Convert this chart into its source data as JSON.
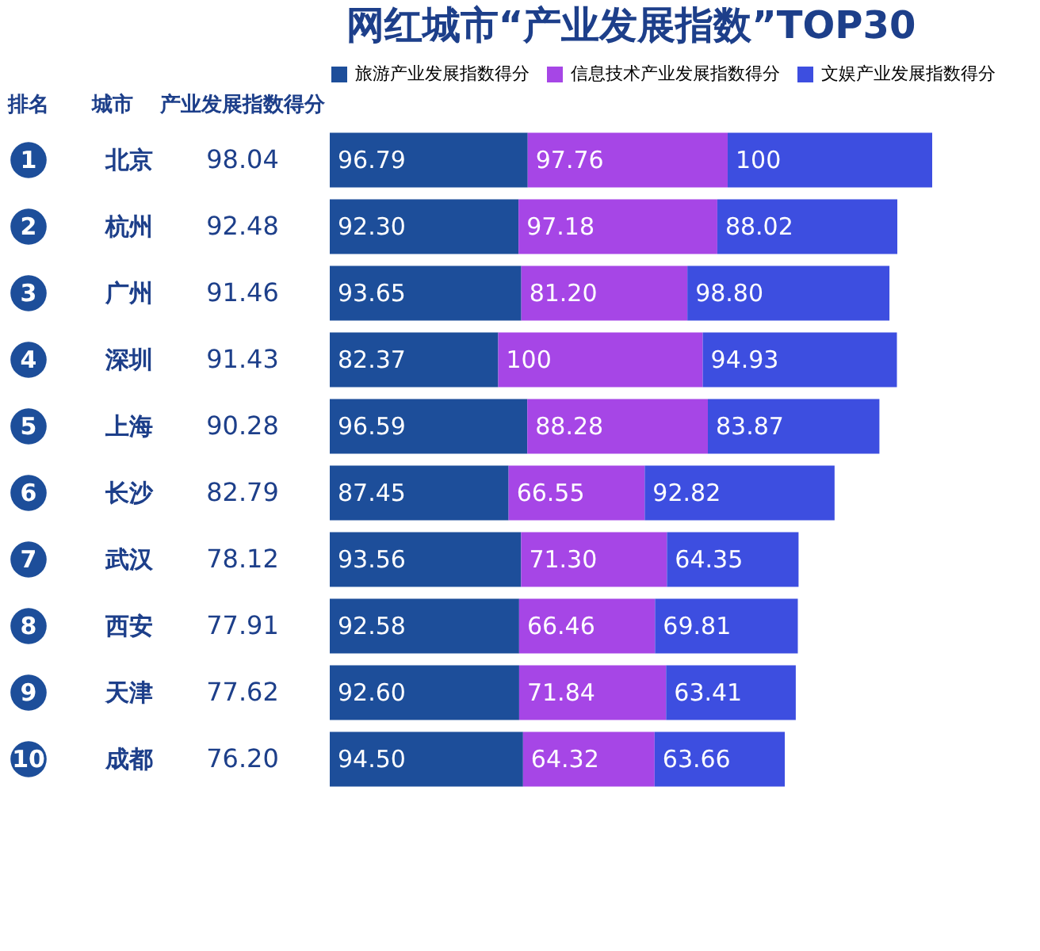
{
  "chart_data": {
    "type": "bar",
    "orientation": "horizontal",
    "stacked": true,
    "legend": "top",
    "title": "网红城市“产业发展指数”TOP30",
    "categories": [
      "北京",
      "杭州",
      "广州",
      "深圳",
      "上海",
      "长沙",
      "武汉",
      "西安",
      "天津",
      "成都"
    ],
    "series": [
      {
        "name": "旅游产业发展指数得分",
        "color": "#1d4e9a",
        "values": [
          96.79,
          92.3,
          93.65,
          82.37,
          96.59,
          87.45,
          93.56,
          92.58,
          92.6,
          94.5
        ],
        "value_labels": [
          "96.79",
          "92.30",
          "93.65",
          "82.37",
          "96.59",
          "87.45",
          "93.56",
          "92.58",
          "92.60",
          "94.50"
        ]
      },
      {
        "name": "信息技术产业发展指数得分",
        "color": "#a646e6",
        "values": [
          97.76,
          97.18,
          81.2,
          100,
          88.28,
          66.55,
          71.3,
          66.46,
          71.84,
          64.32
        ],
        "value_labels": [
          "97.76",
          "97.18",
          "81.20",
          "100",
          "88.28",
          "66.55",
          "71.30",
          "66.46",
          "71.84",
          "64.32"
        ]
      },
      {
        "name": "文娱产业发展指数得分",
        "color": "#3d4ee0",
        "values": [
          100,
          88.02,
          98.8,
          94.93,
          83.87,
          92.82,
          64.35,
          69.81,
          63.41,
          63.66
        ],
        "value_labels": [
          "100",
          "88.02",
          "98.80",
          "94.93",
          "83.87",
          "92.82",
          "64.35",
          "69.81",
          "63.41",
          "63.66"
        ]
      }
    ],
    "annotations": [
      "排名",
      "城市",
      "产业发展指数得分",
      "1",
      "2",
      "3",
      "4",
      "5",
      "6",
      "7",
      "8",
      "9",
      "10",
      "98.04",
      "92.48",
      "91.46",
      "91.43",
      "90.28",
      "82.79",
      "78.12",
      "77.91",
      "77.62",
      "76.20"
    ]
  }
}
